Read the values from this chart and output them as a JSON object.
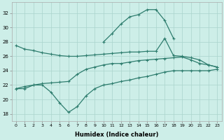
{
  "xlabel": "Humidex (Indice chaleur)",
  "x": [
    0,
    1,
    2,
    3,
    4,
    5,
    6,
    7,
    8,
    9,
    10,
    11,
    12,
    13,
    14,
    15,
    16,
    17,
    18,
    19,
    20,
    21,
    22,
    23
  ],
  "line_top": [
    null,
    null,
    null,
    null,
    null,
    null,
    null,
    null,
    null,
    null,
    28.0,
    29.2,
    30.5,
    31.5,
    31.8,
    32.5,
    32.5,
    31.0,
    28.5,
    null,
    null,
    null,
    null,
    null
  ],
  "line_upper": [
    27.5,
    27.0,
    26.8,
    26.5,
    26.3,
    26.1,
    26.0,
    26.0,
    26.1,
    26.2,
    26.3,
    26.4,
    26.5,
    26.6,
    26.6,
    26.7,
    26.7,
    28.5,
    26.1,
    26.0,
    25.8,
    25.5,
    24.8,
    24.5
  ],
  "line_mid": [
    21.5,
    21.8,
    22.0,
    22.2,
    22.3,
    22.4,
    22.5,
    23.5,
    24.2,
    24.5,
    24.8,
    25.0,
    25.0,
    25.2,
    25.4,
    25.5,
    25.6,
    25.7,
    25.8,
    25.9,
    25.5,
    25.0,
    24.8,
    24.5
  ],
  "line_lower": [
    21.5,
    21.5,
    22.0,
    22.0,
    21.0,
    19.5,
    18.2,
    19.0,
    20.5,
    21.5,
    22.0,
    22.2,
    22.5,
    22.7,
    23.0,
    23.2,
    23.5,
    23.8,
    24.0,
    24.0,
    24.0,
    24.0,
    24.0,
    24.2
  ],
  "line_bottom": [
    null,
    null,
    null,
    null,
    21.0,
    20.5,
    18.1,
    18.8,
    20.0,
    21.0,
    21.5,
    21.8,
    22.0,
    22.3,
    22.5,
    22.7,
    23.0,
    23.2,
    23.5,
    23.5,
    23.5,
    23.5,
    23.5,
    23.8
  ],
  "color": "#2e7d6e",
  "bg_color": "#cdeee8",
  "grid_color": "#aad4cc",
  "ylim": [
    17,
    33.5
  ],
  "yticks": [
    18,
    20,
    22,
    24,
    26,
    28,
    30,
    32
  ],
  "xlim": [
    -0.5,
    23.5
  ]
}
